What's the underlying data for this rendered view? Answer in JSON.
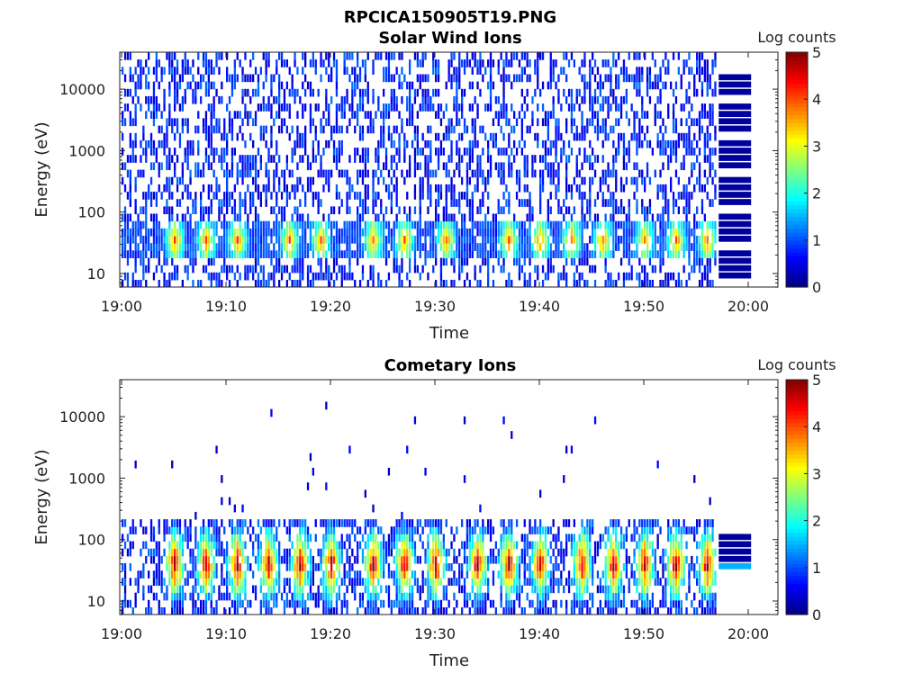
{
  "figure": {
    "title": "RPCICA150905T19.PNG"
  },
  "chart_data": [
    {
      "type": "heatmap",
      "title": "Solar Wind Ions",
      "xlabel": "Time",
      "ylabel": "Energy (eV)",
      "x_ticks": [
        "19:00",
        "19:10",
        "19:20",
        "19:30",
        "19:40",
        "19:50",
        "20:00"
      ],
      "x_range": [
        "19:00",
        "20:03"
      ],
      "data_end": "19:57",
      "y_scale": "log",
      "y_ticks": [
        "10",
        "100",
        "1000",
        "10000"
      ],
      "y_range": [
        6,
        40000
      ],
      "colorbar": {
        "label": "Log counts",
        "ticks": [
          "0",
          "1",
          "2",
          "3",
          "4",
          "5"
        ],
        "range": [
          0,
          5
        ],
        "colormap": "jet"
      },
      "grid": false,
      "features": {
        "background_level_log_counts": [
          0.3,
          1.2
        ],
        "band_energy_eV": [
          20,
          60
        ],
        "band_peak_log_counts": 3.2,
        "burst_times": [
          "19:05",
          "19:08",
          "19:11",
          "19:16",
          "19:19",
          "19:24",
          "19:27",
          "19:31",
          "19:37",
          "19:40",
          "19:43",
          "19:46",
          "19:50",
          "19:53",
          "19:56"
        ]
      }
    },
    {
      "type": "heatmap",
      "title": "Cometary Ions",
      "xlabel": "Time",
      "ylabel": "Energy (eV)",
      "x_ticks": [
        "19:00",
        "19:10",
        "19:20",
        "19:30",
        "19:40",
        "19:50",
        "20:00"
      ],
      "x_range": [
        "19:00",
        "20:03"
      ],
      "data_end": "19:57",
      "y_scale": "log",
      "y_ticks": [
        "10",
        "100",
        "1000",
        "10000"
      ],
      "y_range": [
        6,
        40000
      ],
      "colorbar": {
        "label": "Log counts",
        "ticks": [
          "0",
          "1",
          "2",
          "3",
          "4",
          "5"
        ],
        "range": [
          0,
          5
        ],
        "colormap": "jet"
      },
      "grid": false,
      "features": {
        "band_energy_eV": [
          20,
          80
        ],
        "band_peak_log_counts": 4.3,
        "sparse_high_energy_dots_eV": [
          300,
          15000
        ],
        "burst_times": [
          "19:05",
          "19:08",
          "19:11",
          "19:14",
          "19:17",
          "19:20",
          "19:24",
          "19:27",
          "19:30",
          "19:34",
          "19:37",
          "19:40",
          "19:44",
          "19:47",
          "19:50",
          "19:53",
          "19:56"
        ]
      }
    }
  ]
}
